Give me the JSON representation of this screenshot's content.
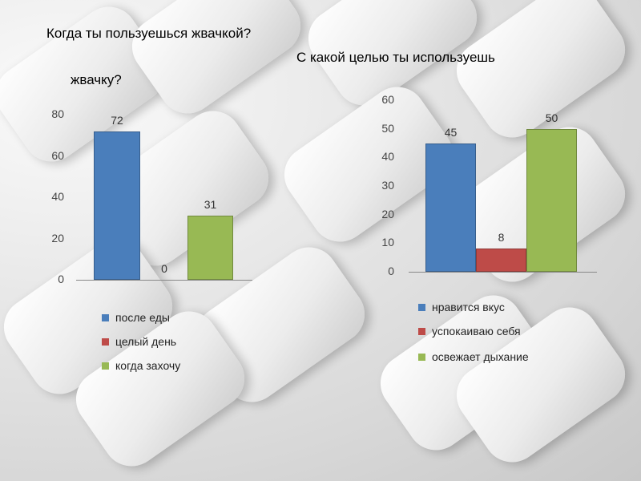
{
  "title1": "Когда ты пользуешься жвачкой?",
  "title2_line1": "С какой целью ты используешь",
  "title2_line2": "жвачку?",
  "chart_data": [
    {
      "type": "bar",
      "title": "Когда ты пользуешься жвачкой?",
      "categories": [
        "после еды",
        "целый день",
        "когда захочу"
      ],
      "values": [
        72,
        0,
        31
      ],
      "colors": [
        "#4a7ebb",
        "#be4b48",
        "#98b954"
      ],
      "ylim": [
        0,
        80
      ],
      "yticks": [
        0,
        20,
        40,
        60,
        80
      ],
      "legend": "bottom",
      "grid": false
    },
    {
      "type": "bar",
      "title": "С какой целью ты используешь жвачку?",
      "categories": [
        "нравится вкус",
        "успокаиваю себя",
        "освежает дыхание"
      ],
      "values": [
        45,
        8,
        50
      ],
      "colors": [
        "#4a7ebb",
        "#be4b48",
        "#98b954"
      ],
      "ylim": [
        0,
        60
      ],
      "yticks": [
        0,
        10,
        20,
        30,
        40,
        50,
        60
      ],
      "legend": "bottom",
      "grid": false
    }
  ]
}
